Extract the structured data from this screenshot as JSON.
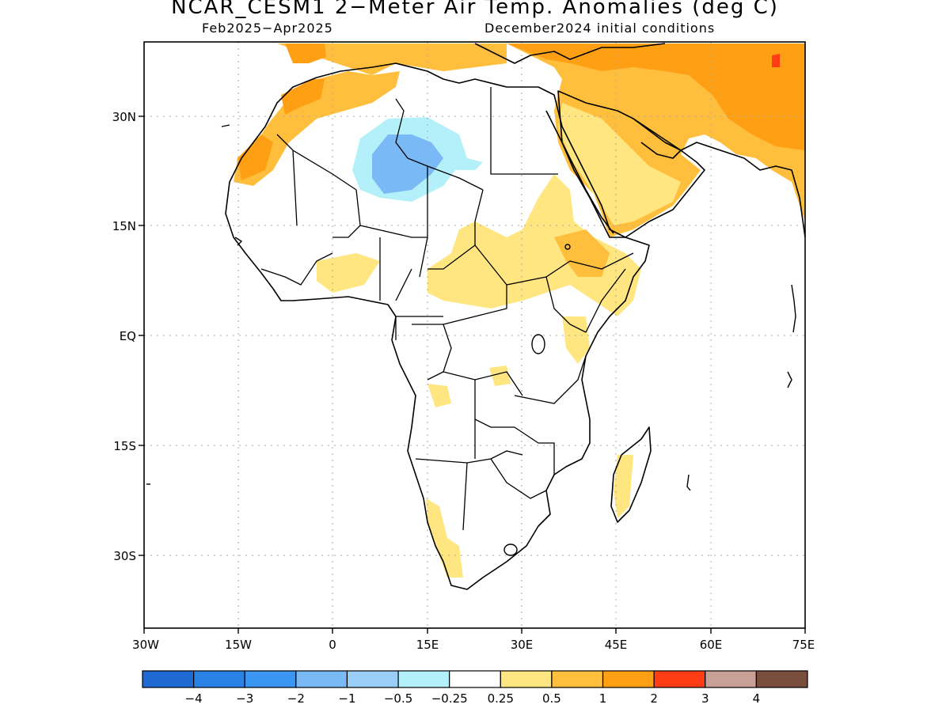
{
  "title": "NCAR_CESM1 2−Meter Air Temp. Anomalies (deg C)",
  "subtitle_left": "Feb2025−Apr2025",
  "subtitle_right": "December2024 initial conditions",
  "lat_labels": [
    "30N",
    "15N",
    "EQ",
    "15S",
    "30S"
  ],
  "lon_labels": [
    "30W",
    "15W",
    "0",
    "15E",
    "30E",
    "45E",
    "60E",
    "75E"
  ],
  "colorbar": {
    "colors": [
      "#1e6ad2",
      "#2a82e6",
      "#3a96f0",
      "#78b9f6",
      "#98cef8",
      "#b4f0fa",
      "#ffffff",
      "#ffe680",
      "#ffbe3c",
      "#ffa014",
      "#ff3c14",
      "#c8a096",
      "#7a4e3c"
    ],
    "labels": [
      "−4",
      "−3",
      "−2",
      "−1",
      "−0.5",
      "−0.25",
      "0.25",
      "0.5",
      "1",
      "2",
      "3",
      "4"
    ]
  }
}
